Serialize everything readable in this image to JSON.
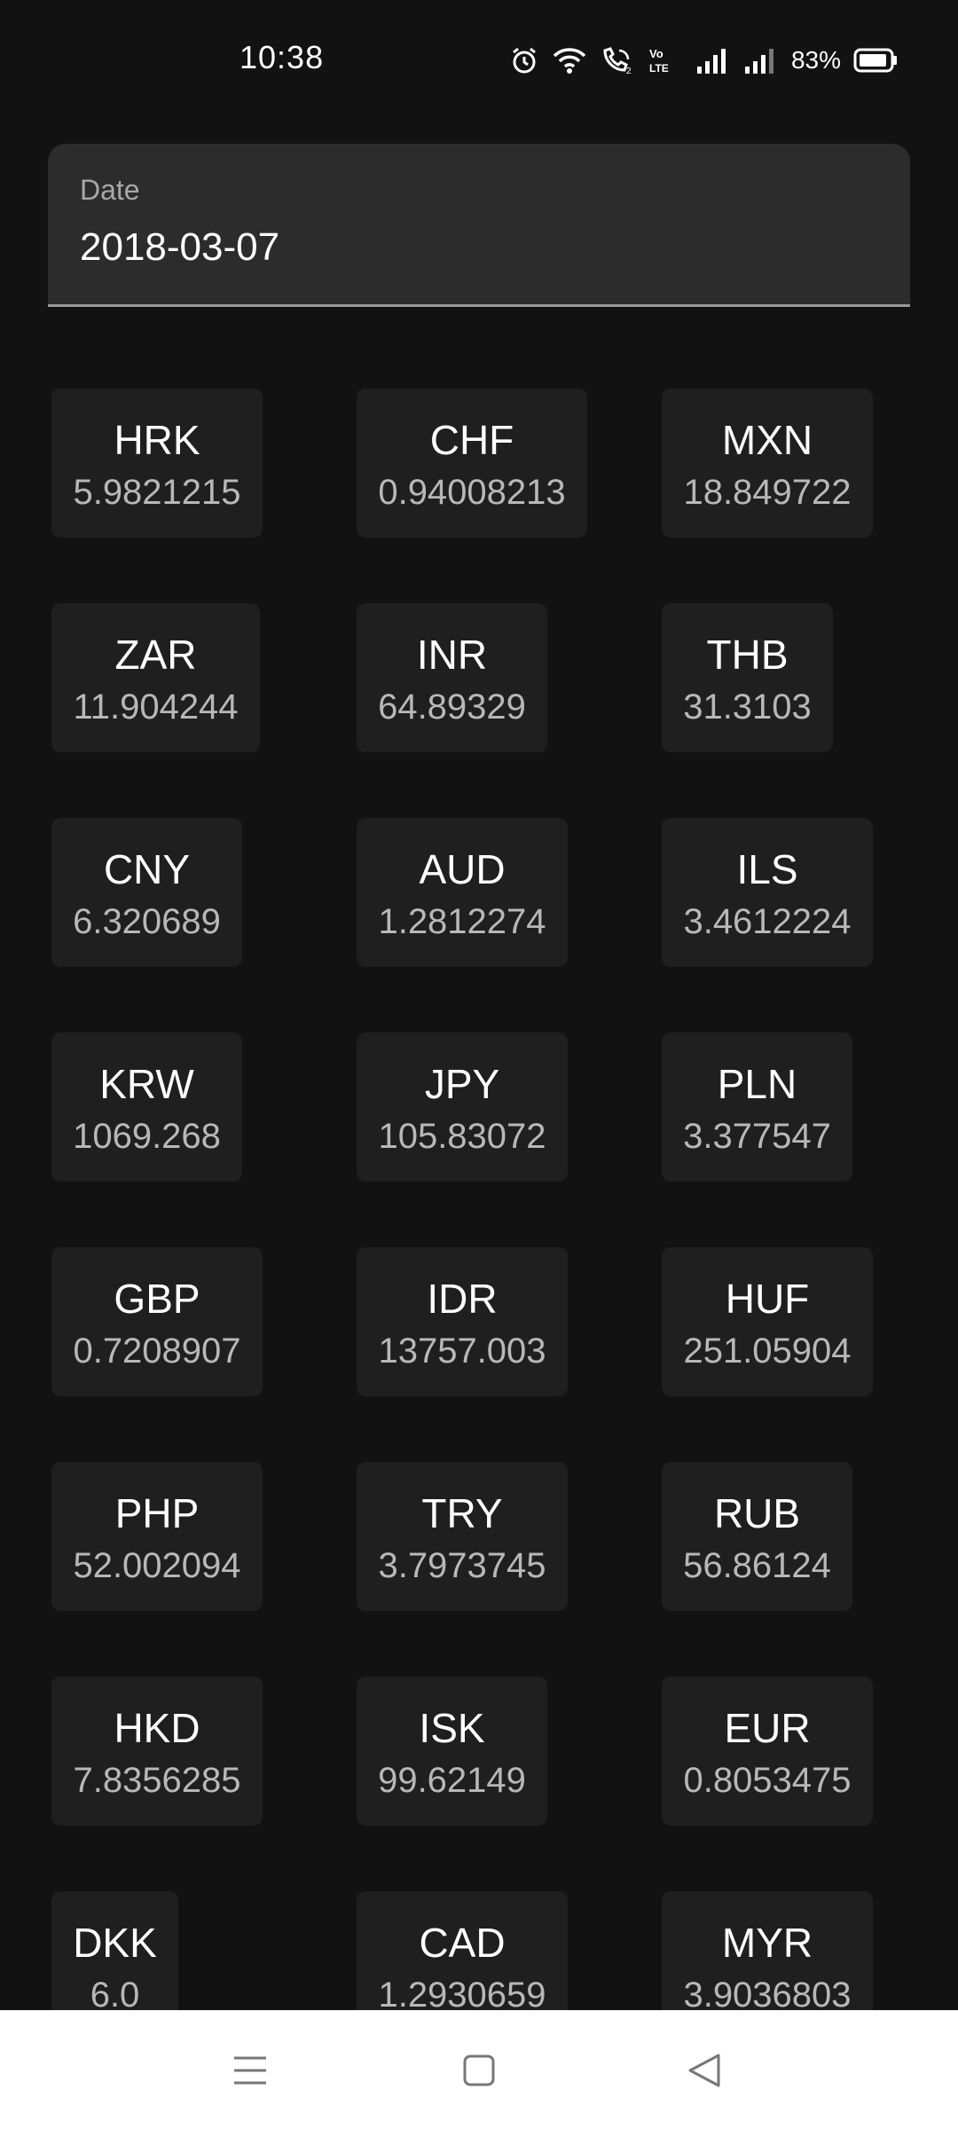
{
  "status_bar": {
    "time": "10:38",
    "battery": "83%"
  },
  "date_field": {
    "label": "Date",
    "value": "2018-03-07"
  },
  "rates": [
    {
      "code": "HRK",
      "rate": "5.9821215"
    },
    {
      "code": "CHF",
      "rate": "0.94008213"
    },
    {
      "code": "MXN",
      "rate": "18.849722"
    },
    {
      "code": "ZAR",
      "rate": "11.904244"
    },
    {
      "code": "INR",
      "rate": "64.89329"
    },
    {
      "code": "THB",
      "rate": "31.3103"
    },
    {
      "code": "CNY",
      "rate": "6.320689"
    },
    {
      "code": "AUD",
      "rate": "1.2812274"
    },
    {
      "code": "ILS",
      "rate": "3.4612224"
    },
    {
      "code": "KRW",
      "rate": "1069.268"
    },
    {
      "code": "JPY",
      "rate": "105.83072"
    },
    {
      "code": "PLN",
      "rate": "3.377547"
    },
    {
      "code": "GBP",
      "rate": "0.7208907"
    },
    {
      "code": "IDR",
      "rate": "13757.003"
    },
    {
      "code": "HUF",
      "rate": "251.05904"
    },
    {
      "code": "PHP",
      "rate": "52.002094"
    },
    {
      "code": "TRY",
      "rate": "3.7973745"
    },
    {
      "code": "RUB",
      "rate": "56.86124"
    },
    {
      "code": "HKD",
      "rate": "7.8356285"
    },
    {
      "code": "ISK",
      "rate": "99.62149"
    },
    {
      "code": "EUR",
      "rate": "0.8053475"
    },
    {
      "code": "DKK",
      "rate": "6.0"
    },
    {
      "code": "CAD",
      "rate": "1.2930659"
    },
    {
      "code": "MYR",
      "rate": "3.9036803"
    }
  ],
  "icons": {
    "status": [
      "alarm-icon",
      "wifi-icon",
      "wifi-calling-icon",
      "volte-icon",
      "signal-icon",
      "signal-icon",
      "battery-icon"
    ],
    "nav": [
      "menu-icon",
      "home-icon",
      "back-icon"
    ]
  }
}
